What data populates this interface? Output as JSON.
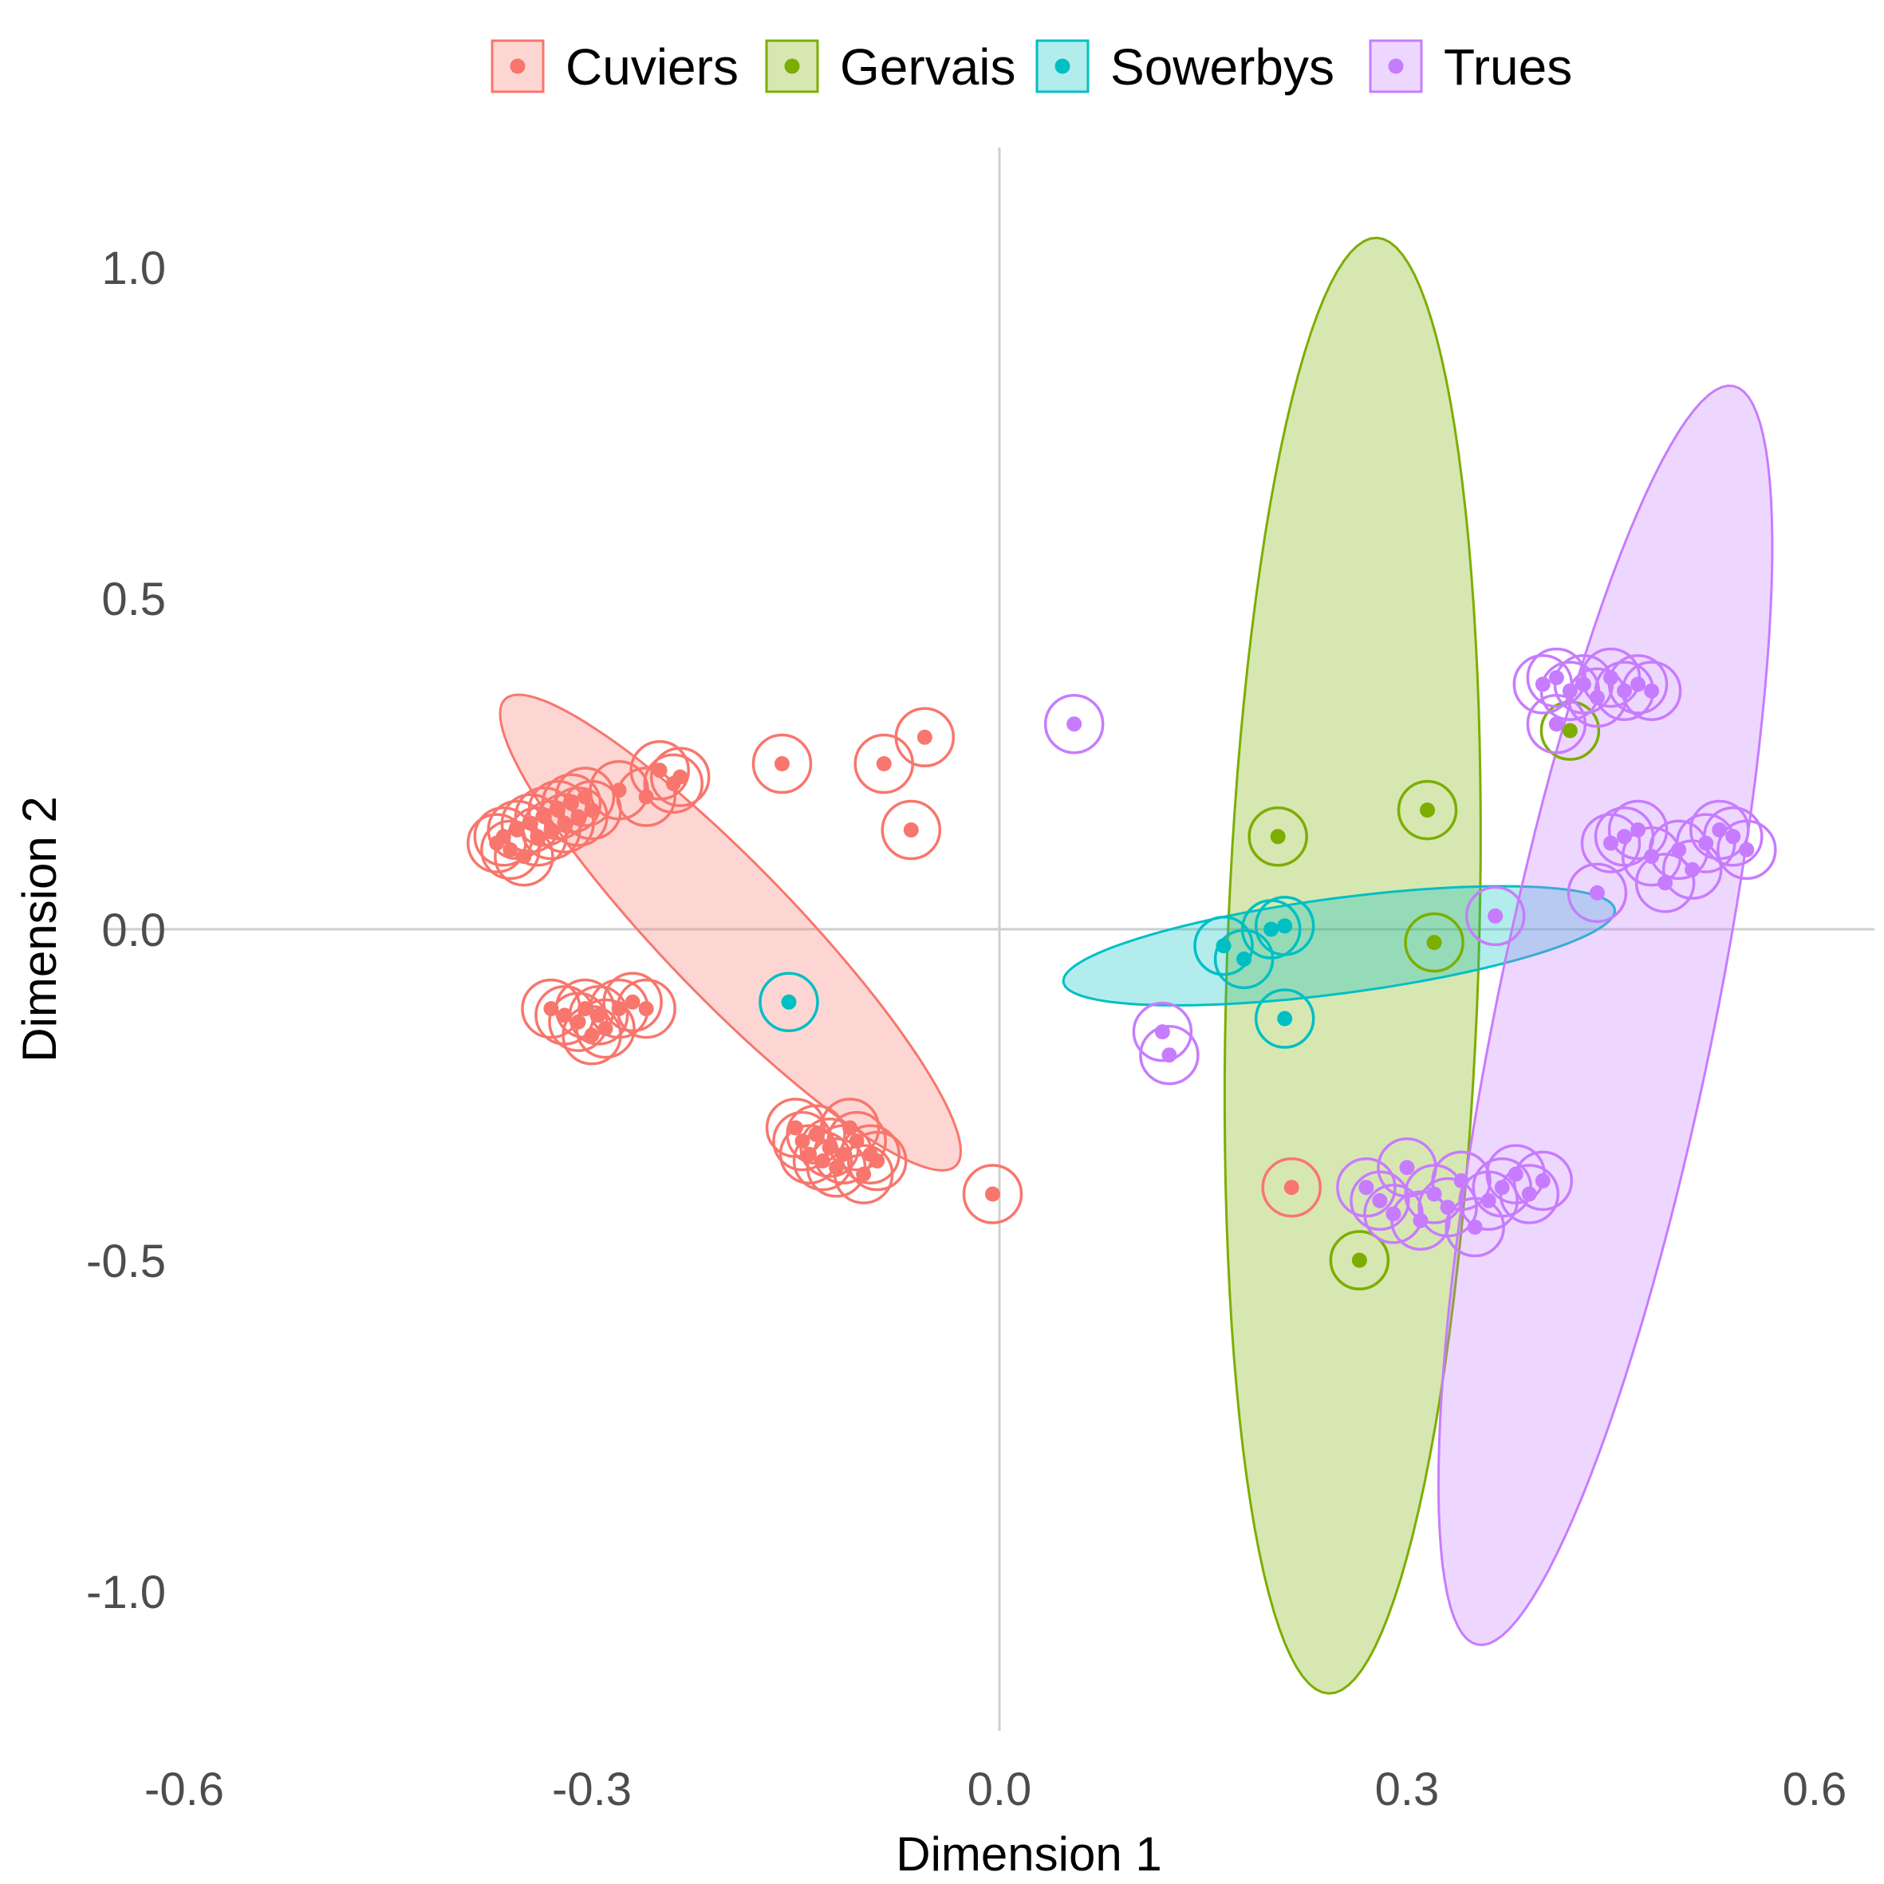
{
  "chart_data": {
    "type": "scatter",
    "title": "",
    "xlabel": "Dimension 1",
    "ylabel": "Dimension 2",
    "xlim": [
      -0.6,
      0.6
    ],
    "ylim": [
      -1.2,
      1.1
    ],
    "xticks": [
      -0.6,
      -0.3,
      0.0,
      0.3,
      0.6
    ],
    "xtick_labels": [
      "-0.6",
      "-0.3",
      "0.0",
      "0.3",
      "0.6"
    ],
    "yticks": [
      -1.0,
      -0.5,
      0.0,
      0.5,
      1.0
    ],
    "ytick_labels": [
      "-1.0",
      "-0.5",
      "0.0",
      "0.5",
      "1.0"
    ],
    "reference_lines": {
      "x": 0.0,
      "y": 0.0
    },
    "grid": false,
    "legend_position": "top",
    "series": [
      {
        "name": "Cuviers",
        "color": "#F8766D",
        "ellipse": {
          "cx": -0.198,
          "cy": -0.005,
          "rx": 0.49,
          "ry": 0.1,
          "angle_deg": -46
        },
        "points": [
          [
            -0.37,
            0.13
          ],
          [
            -0.365,
            0.14
          ],
          [
            -0.36,
            0.12
          ],
          [
            -0.355,
            0.15
          ],
          [
            -0.35,
            0.11
          ],
          [
            -0.345,
            0.16
          ],
          [
            -0.34,
            0.14
          ],
          [
            -0.335,
            0.17
          ],
          [
            -0.33,
            0.15
          ],
          [
            -0.325,
            0.18
          ],
          [
            -0.32,
            0.16
          ],
          [
            -0.315,
            0.19
          ],
          [
            -0.31,
            0.17
          ],
          [
            -0.305,
            0.2
          ],
          [
            -0.3,
            0.18
          ],
          [
            -0.28,
            0.21
          ],
          [
            -0.26,
            0.2
          ],
          [
            -0.25,
            0.24
          ],
          [
            -0.24,
            0.22
          ],
          [
            -0.235,
            0.23
          ],
          [
            -0.16,
            0.25
          ],
          [
            -0.085,
            0.25
          ],
          [
            -0.055,
            0.29
          ],
          [
            -0.065,
            0.15
          ],
          [
            -0.33,
            -0.12
          ],
          [
            -0.32,
            -0.13
          ],
          [
            -0.31,
            -0.14
          ],
          [
            -0.305,
            -0.12
          ],
          [
            -0.3,
            -0.16
          ],
          [
            -0.295,
            -0.13
          ],
          [
            -0.29,
            -0.15
          ],
          [
            -0.28,
            -0.12
          ],
          [
            -0.27,
            -0.11
          ],
          [
            -0.26,
            -0.12
          ],
          [
            -0.15,
            -0.3
          ],
          [
            -0.145,
            -0.32
          ],
          [
            -0.14,
            -0.34
          ],
          [
            -0.135,
            -0.31
          ],
          [
            -0.13,
            -0.35
          ],
          [
            -0.125,
            -0.33
          ],
          [
            -0.12,
            -0.36
          ],
          [
            -0.115,
            -0.34
          ],
          [
            -0.11,
            -0.3
          ],
          [
            -0.105,
            -0.32
          ],
          [
            -0.1,
            -0.37
          ],
          [
            -0.095,
            -0.34
          ],
          [
            -0.09,
            -0.35
          ],
          [
            -0.005,
            -0.4
          ],
          [
            0.215,
            -0.39
          ]
        ]
      },
      {
        "name": "Gervais",
        "color": "#7CAE00",
        "ellipse": {
          "cx": 0.26,
          "cy": -0.055,
          "rx": 1.1,
          "ry": 0.19,
          "angle_deg": 88.1
        },
        "points": [
          [
            0.205,
            0.14
          ],
          [
            0.315,
            0.18
          ],
          [
            0.32,
            -0.02
          ],
          [
            0.265,
            -0.5
          ],
          [
            0.42,
            0.3
          ]
        ]
      },
      {
        "name": "Sowerbys",
        "color": "#00BFC4",
        "ellipse": {
          "cx": 0.25,
          "cy": -0.025,
          "rx": 0.42,
          "ry": 0.072,
          "angle_deg": 7.5
        },
        "points": [
          [
            -0.155,
            -0.11
          ],
          [
            0.165,
            -0.025
          ],
          [
            0.18,
            -0.045
          ],
          [
            0.2,
            0.0
          ],
          [
            0.21,
            0.005
          ],
          [
            0.21,
            -0.135
          ]
        ]
      },
      {
        "name": "Trues",
        "color": "#C77CFF",
        "ellipse": {
          "cx": 0.446,
          "cy": -0.13,
          "rx": 0.97,
          "ry": 0.165,
          "angle_deg": 78.5
        },
        "points": [
          [
            0.055,
            0.31
          ],
          [
            0.12,
            -0.155
          ],
          [
            0.125,
            -0.19
          ],
          [
            0.365,
            0.02
          ],
          [
            0.4,
            0.37
          ],
          [
            0.41,
            0.38
          ],
          [
            0.42,
            0.36
          ],
          [
            0.43,
            0.37
          ],
          [
            0.44,
            0.35
          ],
          [
            0.45,
            0.38
          ],
          [
            0.46,
            0.36
          ],
          [
            0.47,
            0.37
          ],
          [
            0.48,
            0.36
          ],
          [
            0.41,
            0.31
          ],
          [
            0.44,
            0.055
          ],
          [
            0.45,
            0.13
          ],
          [
            0.46,
            0.14
          ],
          [
            0.47,
            0.15
          ],
          [
            0.48,
            0.11
          ],
          [
            0.49,
            0.07
          ],
          [
            0.5,
            0.12
          ],
          [
            0.51,
            0.09
          ],
          [
            0.52,
            0.13
          ],
          [
            0.53,
            0.15
          ],
          [
            0.54,
            0.14
          ],
          [
            0.55,
            0.12
          ],
          [
            0.27,
            -0.39
          ],
          [
            0.28,
            -0.41
          ],
          [
            0.29,
            -0.43
          ],
          [
            0.3,
            -0.36
          ],
          [
            0.31,
            -0.44
          ],
          [
            0.32,
            -0.4
          ],
          [
            0.33,
            -0.42
          ],
          [
            0.34,
            -0.38
          ],
          [
            0.35,
            -0.45
          ],
          [
            0.36,
            -0.41
          ],
          [
            0.37,
            -0.39
          ],
          [
            0.38,
            -0.37
          ],
          [
            0.39,
            -0.4
          ],
          [
            0.4,
            -0.38
          ]
        ]
      }
    ]
  }
}
